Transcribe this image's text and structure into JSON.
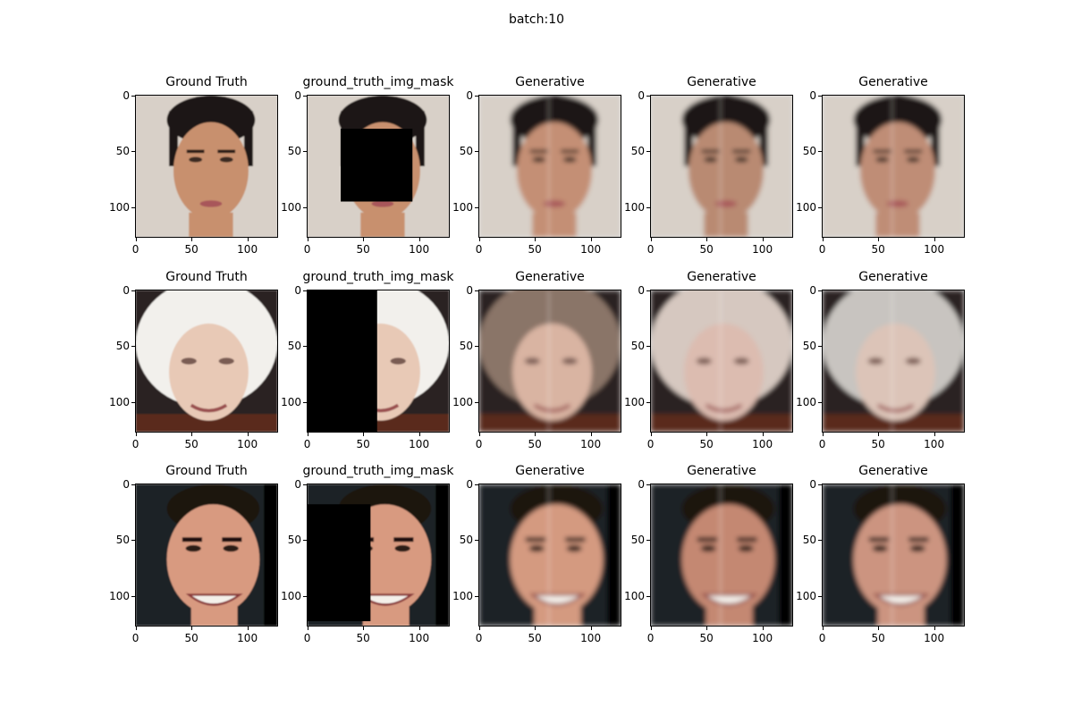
{
  "figure": {
    "suptitle": "batch:10"
  },
  "axis": {
    "ticks": [
      {
        "value": 0,
        "label": "0"
      },
      {
        "value": 50,
        "label": "50"
      },
      {
        "value": 100,
        "label": "100"
      }
    ],
    "extent": 128
  },
  "panels": [
    {
      "row": 0,
      "col": 0,
      "title": "Ground Truth",
      "kind": "gt",
      "subject": "man-dark-hair",
      "bg": "#d8d0c8",
      "skin": "#c8906e",
      "hair": "#1e1712"
    },
    {
      "row": 0,
      "col": 1,
      "title": "ground_truth_img_mask",
      "kind": "mask",
      "subject": "man-dark-hair",
      "bg": "#d8d0c8",
      "skin": "#c8906e",
      "hair": "#1e1712",
      "mask": {
        "x0": 30,
        "y0": 30,
        "x1": 95,
        "y1": 96
      }
    },
    {
      "row": 0,
      "col": 2,
      "title": "Generative",
      "kind": "gen",
      "subject": "man-dark-hair",
      "bg": "#d8d0c8",
      "skin": "#c48f74",
      "hair": "#1e1712"
    },
    {
      "row": 0,
      "col": 3,
      "title": "Generative",
      "kind": "gen",
      "subject": "man-dark-hair",
      "bg": "#d8d0c8",
      "skin": "#b98a72",
      "hair": "#1e1712"
    },
    {
      "row": 0,
      "col": 4,
      "title": "Generative",
      "kind": "gen",
      "subject": "man-dark-hair",
      "bg": "#d8d0c8",
      "skin": "#bf8d76",
      "hair": "#1e1712"
    },
    {
      "row": 1,
      "col": 0,
      "title": "Ground Truth",
      "kind": "gt",
      "subject": "older-woman-white-hair",
      "bg": "#2a2420",
      "skin": "#e8c9b6",
      "hair": "#f2f0ec"
    },
    {
      "row": 1,
      "col": 1,
      "title": "ground_truth_img_mask",
      "kind": "mask",
      "subject": "older-woman-white-hair",
      "bg": "#2a2420",
      "skin": "#e8c9b6",
      "hair": "#f2f0ec",
      "mask": {
        "x0": 0,
        "y0": 0,
        "x1": 63,
        "y1": 128
      }
    },
    {
      "row": 1,
      "col": 2,
      "title": "Generative",
      "kind": "gen",
      "subject": "older-woman-white-hair",
      "bg": "#2a2420",
      "skin": "#d9b4a2",
      "hair": "#8a7468"
    },
    {
      "row": 1,
      "col": 3,
      "title": "Generative",
      "kind": "gen",
      "subject": "older-woman-white-hair",
      "bg": "#2a2420",
      "skin": "#dcbcb0",
      "hair": "#d6c8c0"
    },
    {
      "row": 1,
      "col": 4,
      "title": "Generative",
      "kind": "gen",
      "subject": "older-woman-white-hair",
      "bg": "#2a2420",
      "skin": "#dcc4b8",
      "hair": "#c8c4c0"
    },
    {
      "row": 2,
      "col": 0,
      "title": "Ground Truth",
      "kind": "gt",
      "subject": "smiling-man",
      "bg": "#1c2226",
      "skin": "#d89a80",
      "hair": "#1a1410"
    },
    {
      "row": 2,
      "col": 1,
      "title": "ground_truth_img_mask",
      "kind": "mask",
      "subject": "smiling-man",
      "bg": "#1c2226",
      "skin": "#d89a80",
      "hair": "#1a1410",
      "mask": {
        "x0": 0,
        "y0": 18,
        "x1": 57,
        "y1": 124
      }
    },
    {
      "row": 2,
      "col": 2,
      "title": "Generative",
      "kind": "gen",
      "subject": "smiling-man",
      "bg": "#1c2226",
      "skin": "#d49a80",
      "hair": "#1a1410"
    },
    {
      "row": 2,
      "col": 3,
      "title": "Generative",
      "kind": "gen",
      "subject": "smiling-man",
      "bg": "#1c2226",
      "skin": "#c48872",
      "hair": "#1a1410"
    },
    {
      "row": 2,
      "col": 4,
      "title": "Generative",
      "kind": "gen",
      "subject": "smiling-man",
      "bg": "#1c2226",
      "skin": "#cc9480",
      "hair": "#1a1410"
    }
  ]
}
